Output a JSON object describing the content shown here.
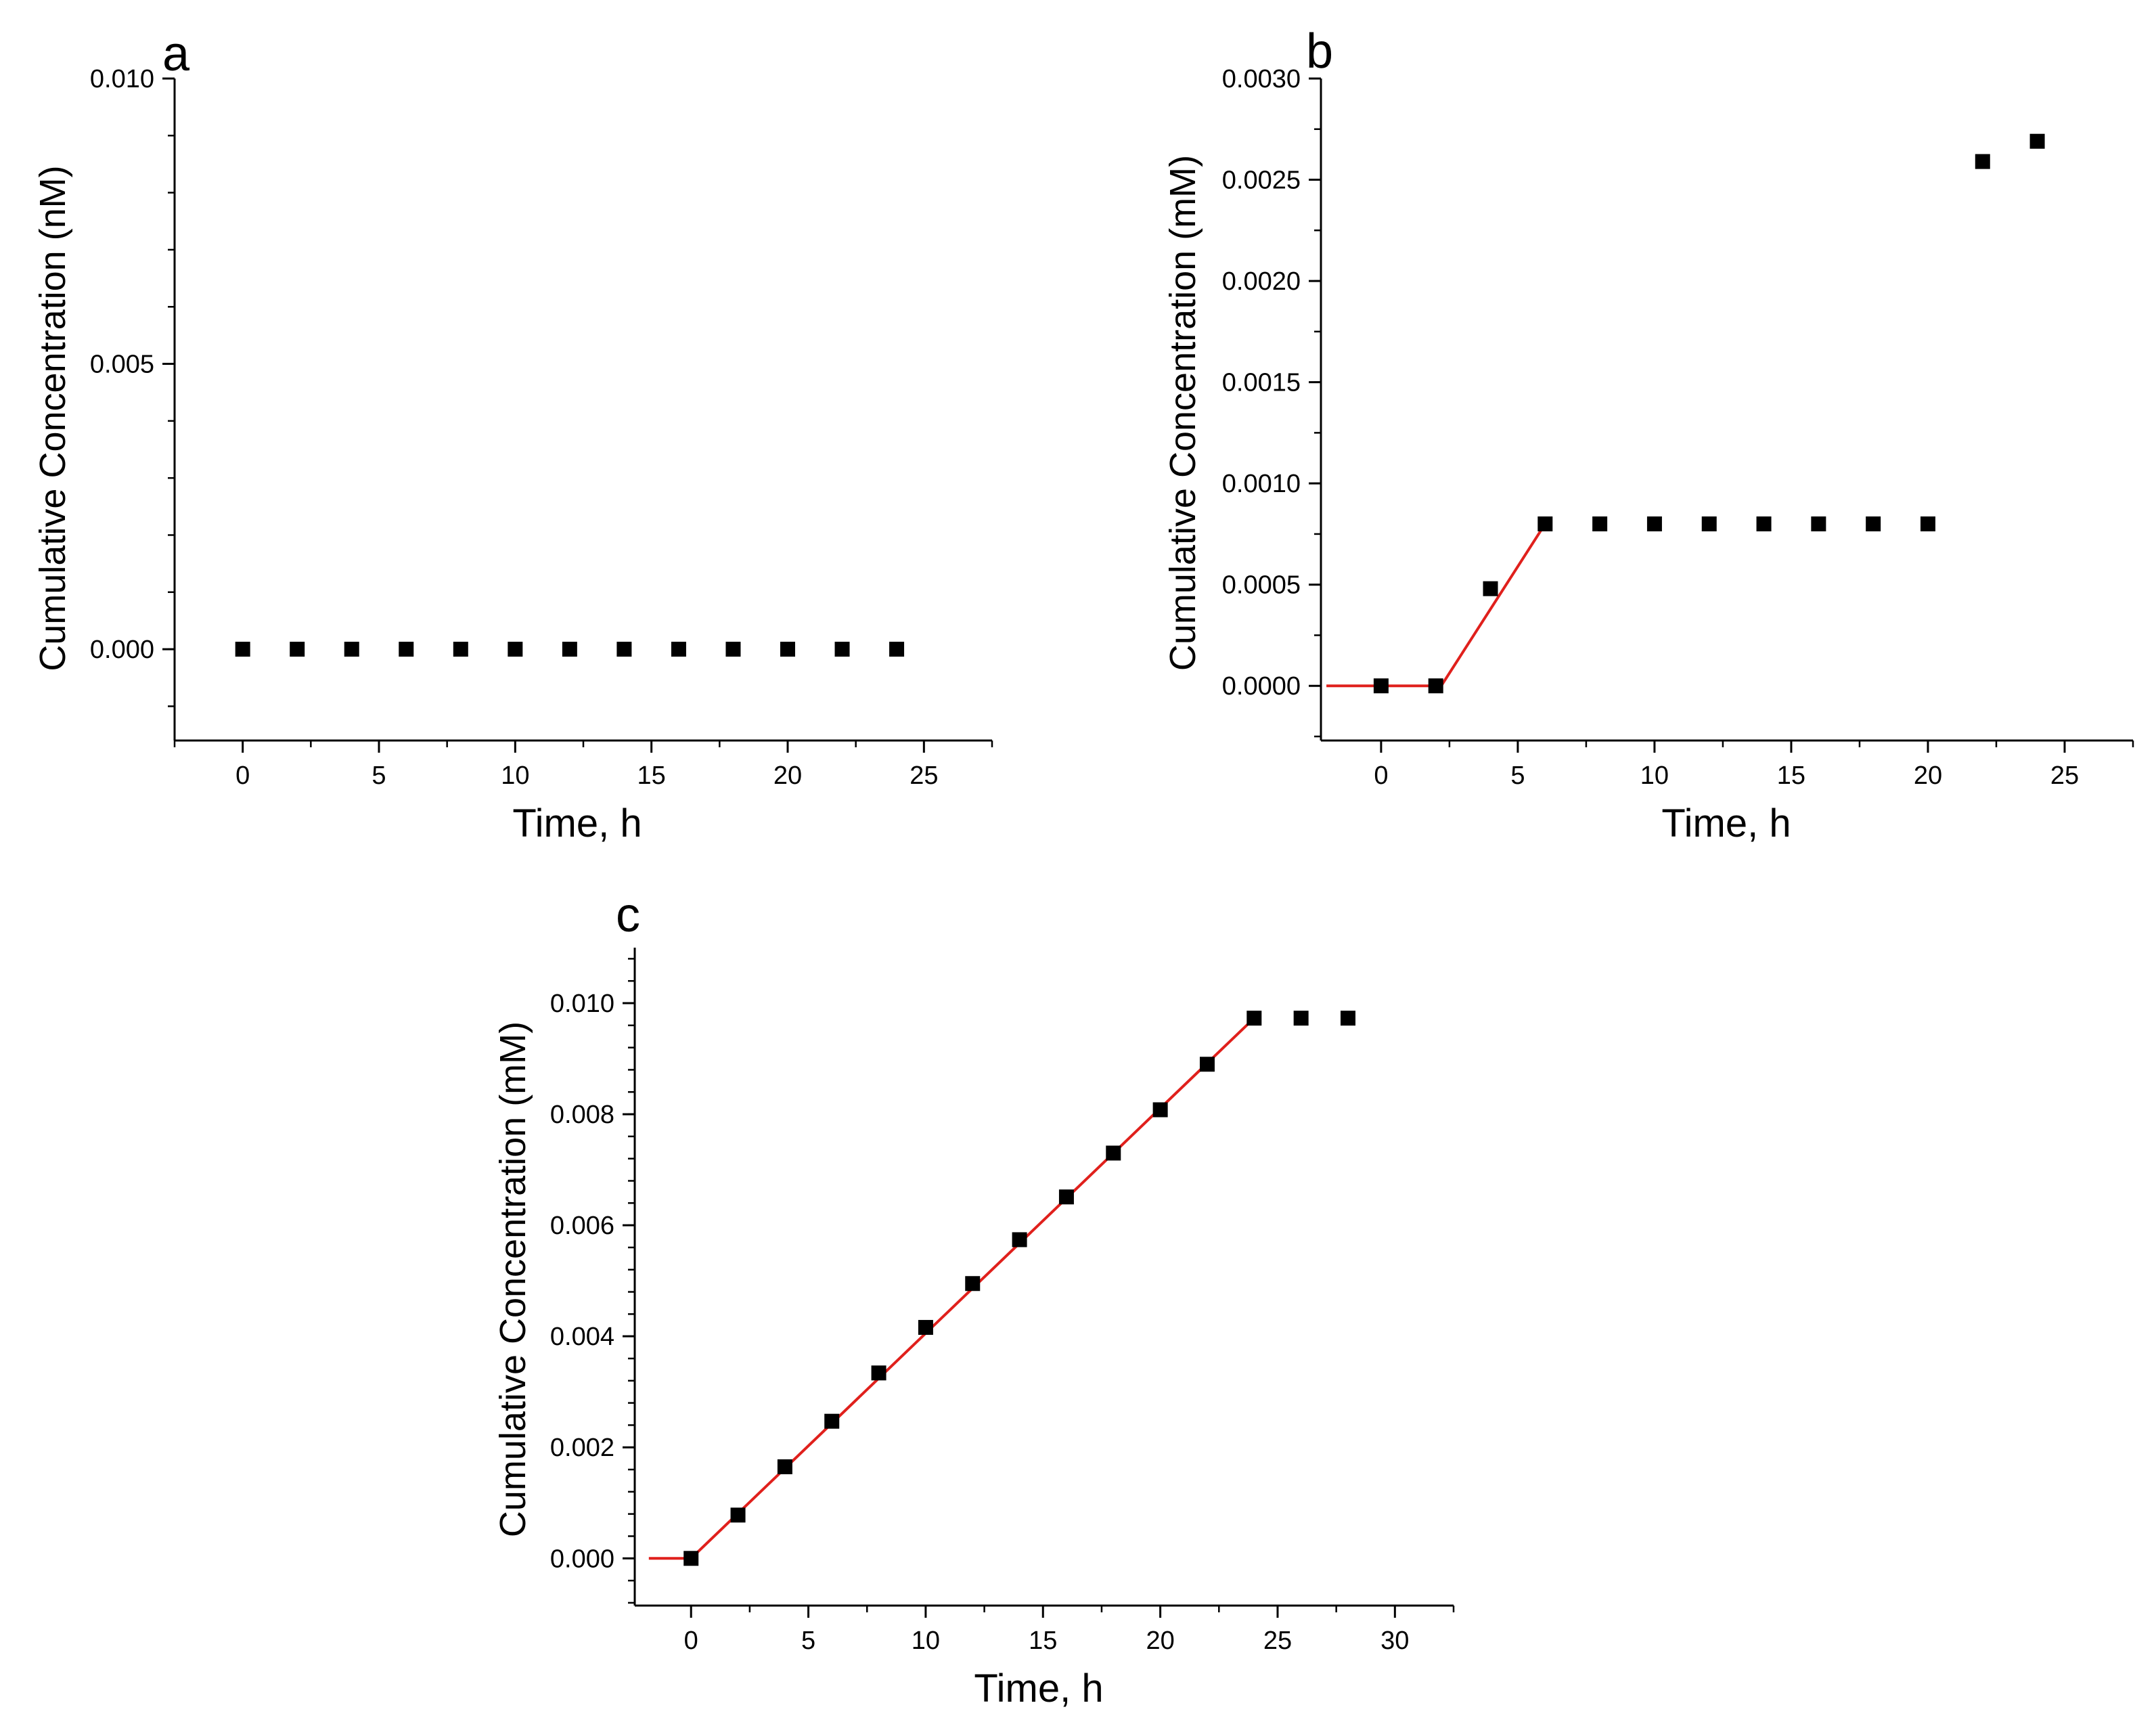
{
  "chart_data": [
    {
      "panel": "a",
      "type": "scatter",
      "xlabel": "Time, h",
      "ylabel": "Cumulative Concentration (nM)",
      "xlim": [
        -2.5,
        27.5
      ],
      "ylim": [
        -0.0016,
        0.01
      ],
      "xticks": [
        0,
        5,
        10,
        15,
        20,
        25
      ],
      "xtick_labels": [
        "0",
        "5",
        "10",
        "15",
        "20",
        "25"
      ],
      "yticks": [
        0.0,
        0.005,
        0.01
      ],
      "ytick_labels": [
        "0.000",
        "0.005",
        "0.010"
      ],
      "series": [
        {
          "name": "data",
          "marker": "square",
          "color": "#000000",
          "x": [
            0,
            2,
            4,
            6,
            8,
            10,
            12,
            14,
            16,
            18,
            20,
            22,
            24
          ],
          "y": [
            0,
            0,
            0,
            0,
            0,
            0,
            0,
            0,
            0,
            0,
            0,
            0,
            0
          ]
        }
      ]
    },
    {
      "panel": "b",
      "type": "scatter",
      "xlabel": "Time, h",
      "ylabel": "Cumulative Concentration (mM)",
      "xlim": [
        -2.2,
        27.5
      ],
      "ylim": [
        -0.00027,
        0.003
      ],
      "xticks": [
        0,
        5,
        10,
        15,
        20,
        25
      ],
      "xtick_labels": [
        "0",
        "5",
        "10",
        "15",
        "20",
        "25"
      ],
      "yticks": [
        0.0,
        0.0005,
        0.001,
        0.0015,
        0.002,
        0.0025,
        0.003
      ],
      "ytick_labels": [
        "0.0000",
        "0.0005",
        "0.0010",
        "0.0015",
        "0.0020",
        "0.0025",
        "0.0030"
      ],
      "series": [
        {
          "name": "data",
          "marker": "square",
          "color": "#000000",
          "x": [
            0,
            2,
            4,
            6,
            8,
            10,
            12,
            14,
            16,
            18,
            20,
            22,
            24
          ],
          "y": [
            0,
            0,
            0.00048,
            0.0008,
            0.0008,
            0.0008,
            0.0008,
            0.0008,
            0.0008,
            0.0008,
            0.0008,
            0.00259,
            0.00269
          ]
        },
        {
          "name": "fit",
          "type": "line",
          "color": "#e0201c",
          "x": [
            -2,
            2.2,
            6
          ],
          "y": [
            0,
            0,
            0.0008
          ]
        }
      ]
    },
    {
      "panel": "c",
      "type": "scatter",
      "xlabel": "Time, h",
      "ylabel": "Cumulative Concentration (mM)",
      "xlim": [
        -2.4,
        32.5
      ],
      "ylim": [
        -0.00085,
        0.011
      ],
      "xticks": [
        0,
        5,
        10,
        15,
        20,
        25,
        30
      ],
      "xtick_labels": [
        "0",
        "5",
        "10",
        "15",
        "20",
        "25",
        "30"
      ],
      "yticks": [
        0.0,
        0.002,
        0.004,
        0.006,
        0.008,
        0.01
      ],
      "ytick_labels": [
        "0.000",
        "0.002",
        "0.004",
        "0.006",
        "0.008",
        "0.010"
      ],
      "series": [
        {
          "name": "data",
          "marker": "square",
          "color": "#000000",
          "x": [
            0,
            2,
            4,
            6,
            8,
            10,
            12,
            14,
            16,
            18,
            20,
            22,
            24,
            26,
            28
          ],
          "y": [
            0,
            0.00078,
            0.00165,
            0.00247,
            0.00334,
            0.00416,
            0.00495,
            0.00574,
            0.00651,
            0.0073,
            0.00808,
            0.0089,
            0.00973,
            0.00973,
            0.00973
          ]
        },
        {
          "name": "fit",
          "type": "line",
          "color": "#e0201c",
          "x": [
            -1.8,
            0,
            24
          ],
          "y": [
            0,
            0,
            0.00973
          ]
        }
      ]
    }
  ]
}
